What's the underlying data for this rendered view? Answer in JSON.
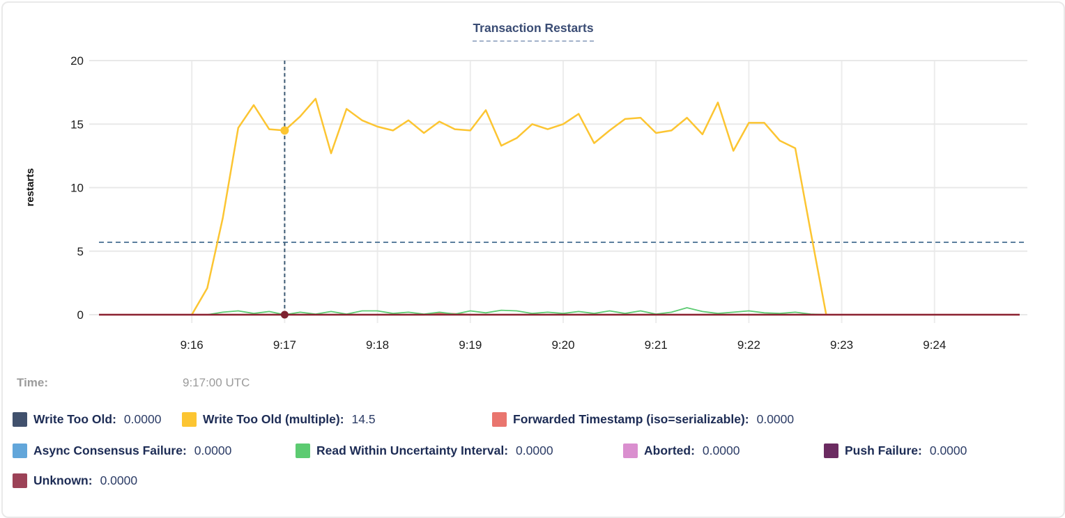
{
  "card_title": "Transaction Restarts",
  "chart_data": {
    "type": "line",
    "title": "Transaction Restarts",
    "xlabel": "",
    "ylabel": "restarts",
    "ylim": [
      0,
      20
    ],
    "yticks": [
      0,
      5,
      10,
      15,
      20
    ],
    "xticks": [
      "9:16",
      "9:17",
      "9:18",
      "9:19",
      "9:20",
      "9:21",
      "9:22",
      "9:23",
      "9:24"
    ],
    "x_domain": [
      "9:15:00",
      "9:25:00"
    ],
    "grid": true,
    "legend_position": "bottom",
    "threshold_line": {
      "value": 5.7,
      "style": "dashed",
      "color": "#5c7f9e"
    },
    "crosshair": {
      "time": "9:17:00",
      "color": "#3d5a74",
      "dots": [
        {
          "series": "Write Too Old (multiple)",
          "value": 14.5,
          "color": "#fcc532"
        },
        {
          "series": "Unknown",
          "value": 0,
          "color": "#7e2230"
        }
      ]
    },
    "series": [
      {
        "name": "Write Too Old",
        "color": "#41516d",
        "width": 2,
        "values": [
          [
            "9:15:00",
            0
          ],
          [
            "9:24:55",
            0
          ]
        ]
      },
      {
        "name": "Async Consensus Failure",
        "color": "#62a6da",
        "width": 2,
        "values": [
          [
            "9:15:00",
            0
          ],
          [
            "9:24:55",
            0
          ]
        ]
      },
      {
        "name": "Aborted",
        "color": "#da8fcf",
        "width": 2,
        "values": [
          [
            "9:15:00",
            0
          ],
          [
            "9:24:55",
            0
          ]
        ]
      },
      {
        "name": "Push Failure",
        "color": "#6b2b61",
        "width": 2,
        "values": [
          [
            "9:15:00",
            0
          ],
          [
            "9:24:55",
            0
          ]
        ]
      },
      {
        "name": "Forwarded Timestamp (iso=serializable)",
        "color": "#e9756e",
        "width": 2.2,
        "values": [
          [
            "9:15:00",
            0
          ],
          [
            "9:18:30",
            0
          ],
          [
            "9:18:40",
            0.12
          ],
          [
            "9:18:50",
            0.07
          ],
          [
            "9:19:00",
            0
          ],
          [
            "9:24:55",
            0
          ]
        ]
      },
      {
        "name": "Read Within Uncertainty Interval",
        "color": "#5ccb71",
        "width": 1.8,
        "values": [
          [
            "9:16:10",
            0
          ],
          [
            "9:16:20",
            0.2
          ],
          [
            "9:16:30",
            0.3
          ],
          [
            "9:16:40",
            0.1
          ],
          [
            "9:16:50",
            0.25
          ],
          [
            "9:17:00",
            0
          ],
          [
            "9:17:10",
            0.2
          ],
          [
            "9:17:20",
            0.05
          ],
          [
            "9:17:30",
            0.25
          ],
          [
            "9:17:40",
            0.05
          ],
          [
            "9:17:50",
            0.3
          ],
          [
            "9:18:00",
            0.3
          ],
          [
            "9:18:10",
            0.1
          ],
          [
            "9:18:20",
            0.2
          ],
          [
            "9:18:30",
            0.05
          ],
          [
            "9:18:40",
            0.2
          ],
          [
            "9:18:50",
            0.05
          ],
          [
            "9:19:00",
            0.3
          ],
          [
            "9:19:10",
            0.15
          ],
          [
            "9:19:20",
            0.35
          ],
          [
            "9:19:30",
            0.3
          ],
          [
            "9:19:40",
            0.1
          ],
          [
            "9:19:50",
            0.2
          ],
          [
            "9:20:00",
            0.1
          ],
          [
            "9:20:10",
            0.25
          ],
          [
            "9:20:20",
            0.1
          ],
          [
            "9:20:30",
            0.3
          ],
          [
            "9:20:40",
            0.1
          ],
          [
            "9:20:50",
            0.3
          ],
          [
            "9:21:00",
            0.05
          ],
          [
            "9:21:10",
            0.2
          ],
          [
            "9:21:20",
            0.55
          ],
          [
            "9:21:30",
            0.25
          ],
          [
            "9:21:40",
            0.1
          ],
          [
            "9:21:50",
            0.2
          ],
          [
            "9:22:00",
            0.3
          ],
          [
            "9:22:10",
            0.15
          ],
          [
            "9:22:20",
            0.1
          ],
          [
            "9:22:30",
            0.2
          ],
          [
            "9:22:40",
            0.05
          ],
          [
            "9:22:50",
            0
          ]
        ]
      },
      {
        "name": "Write Too Old (multiple)",
        "color": "#fcc532",
        "width": 2.5,
        "values": [
          [
            "9:16:00",
            0
          ],
          [
            "9:16:10",
            2.1
          ],
          [
            "9:16:20",
            7.6
          ],
          [
            "9:16:30",
            14.7
          ],
          [
            "9:16:40",
            16.5
          ],
          [
            "9:16:50",
            14.6
          ],
          [
            "9:17:00",
            14.5
          ],
          [
            "9:17:10",
            15.6
          ],
          [
            "9:17:20",
            17.0
          ],
          [
            "9:17:30",
            12.7
          ],
          [
            "9:17:40",
            16.2
          ],
          [
            "9:17:50",
            15.3
          ],
          [
            "9:18:00",
            14.8
          ],
          [
            "9:18:10",
            14.5
          ],
          [
            "9:18:20",
            15.3
          ],
          [
            "9:18:30",
            14.3
          ],
          [
            "9:18:40",
            15.2
          ],
          [
            "9:18:50",
            14.6
          ],
          [
            "9:19:00",
            14.5
          ],
          [
            "9:19:10",
            16.1
          ],
          [
            "9:19:20",
            13.3
          ],
          [
            "9:19:30",
            13.9
          ],
          [
            "9:19:40",
            15.0
          ],
          [
            "9:19:50",
            14.6
          ],
          [
            "9:20:00",
            15.0
          ],
          [
            "9:20:10",
            15.8
          ],
          [
            "9:20:20",
            13.5
          ],
          [
            "9:20:30",
            14.5
          ],
          [
            "9:20:40",
            15.4
          ],
          [
            "9:20:50",
            15.5
          ],
          [
            "9:21:00",
            14.3
          ],
          [
            "9:21:10",
            14.5
          ],
          [
            "9:21:20",
            15.5
          ],
          [
            "9:21:30",
            14.2
          ],
          [
            "9:21:40",
            16.7
          ],
          [
            "9:21:50",
            12.9
          ],
          [
            "9:22:00",
            15.1
          ],
          [
            "9:22:10",
            15.1
          ],
          [
            "9:22:20",
            13.7
          ],
          [
            "9:22:30",
            13.1
          ],
          [
            "9:22:40",
            6.5
          ],
          [
            "9:22:50",
            0
          ]
        ]
      },
      {
        "name": "Unknown",
        "color": "#8b2332",
        "width": 2.5,
        "values": [
          [
            "9:15:00",
            0
          ],
          [
            "9:24:55",
            0
          ]
        ]
      }
    ]
  },
  "readout": {
    "time_label": "Time:",
    "time_value": "9:17:00 UTC"
  },
  "legend": {
    "rows": [
      [
        {
          "label": "Write Too Old:",
          "value": "0.0000",
          "color": "#41516d"
        },
        {
          "label": "Write Too Old (multiple):",
          "value": "14.5",
          "color": "#fcc532"
        },
        {
          "label": "Forwarded Timestamp (iso=serializable):",
          "value": "0.0000",
          "color": "#e9756e"
        }
      ],
      [
        {
          "label": "Async Consensus Failure:",
          "value": "0.0000",
          "color": "#62a6da"
        },
        {
          "label": "Read Within Uncertainty Interval:",
          "value": "0.0000",
          "color": "#5ccb71"
        },
        {
          "label": "Aborted:",
          "value": "0.0000",
          "color": "#da8fcf"
        },
        {
          "label": "Push Failure:",
          "value": "0.0000",
          "color": "#6b2b61"
        }
      ],
      [
        {
          "label": "Unknown:",
          "value": "0.0000",
          "color": "#9c4257"
        }
      ]
    ]
  }
}
